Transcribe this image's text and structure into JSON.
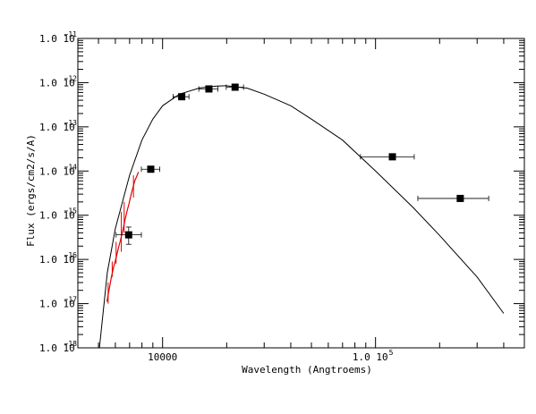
{
  "chart_data": {
    "type": "scatter",
    "xlabel": "Wavelength (Angtroems)",
    "ylabel": "Flux (ergs/cm2/s/A)",
    "x_scale": "log",
    "y_scale": "log",
    "xlim": [
      4000,
      500000
    ],
    "ylim": [
      1e-18,
      1e-11
    ],
    "x_tick_labels": [
      {
        "value": 10000,
        "mantissa": "10000",
        "exponent": ""
      },
      {
        "value": 100000,
        "mantissa": "1.0 10",
        "exponent": "5"
      }
    ],
    "y_tick_labels": [
      {
        "value": 1e-11,
        "mantissa": "1.0 10",
        "exponent": "−11"
      },
      {
        "value": 1e-12,
        "mantissa": "1.0 10",
        "exponent": "−12"
      },
      {
        "value": 1e-13,
        "mantissa": "1.0 10",
        "exponent": "−13"
      },
      {
        "value": 1e-14,
        "mantissa": "1.0 10",
        "exponent": "−14"
      },
      {
        "value": 1e-15,
        "mantissa": "1.0 10",
        "exponent": "−15"
      },
      {
        "value": 1e-16,
        "mantissa": "1.0 10",
        "exponent": "−16"
      },
      {
        "value": 1e-17,
        "mantissa": "1.0 10",
        "exponent": "−17"
      },
      {
        "value": 1e-18,
        "mantissa": "1.0 10",
        "exponent": "−18"
      }
    ],
    "grid": false,
    "photometry": [
      {
        "x": 6930,
        "y": 3.6e-16,
        "xerr_lo": 6050,
        "xerr_hi": 7950,
        "yerr_lo": 2.2e-16,
        "yerr_hi": 5.4e-16
      },
      {
        "x": 8800,
        "y": 1.1e-14,
        "xerr_lo": 7950,
        "xerr_hi": 9700,
        "yerr_lo": 1.1e-14,
        "yerr_hi": 1.1e-14
      },
      {
        "x": 12300,
        "y": 4.8e-13,
        "xerr_lo": 11200,
        "xerr_hi": 13300,
        "yerr_lo": 4.8e-13,
        "yerr_hi": 4.8e-13
      },
      {
        "x": 16500,
        "y": 7.2e-13,
        "xerr_lo": 14800,
        "xerr_hi": 18200,
        "yerr_lo": 7.2e-13,
        "yerr_hi": 7.2e-13
      },
      {
        "x": 21900,
        "y": 7.9e-13,
        "xerr_lo": 19900,
        "xerr_hi": 24000,
        "yerr_lo": 7.9e-13,
        "yerr_hi": 7.9e-13
      },
      {
        "x": 120000,
        "y": 2.1e-14,
        "xerr_lo": 85000,
        "xerr_hi": 152000,
        "yerr_lo": 2.1e-14,
        "yerr_hi": 2.1e-14
      },
      {
        "x": 250000,
        "y": 2.4e-15,
        "xerr_lo": 158000,
        "xerr_hi": 340000,
        "yerr_lo": 2.4e-15,
        "yerr_hi": 2.4e-15
      }
    ],
    "model_curve": [
      [
        5050,
        1e-18
      ],
      [
        5500,
        5e-17
      ],
      [
        6000,
        5e-16
      ],
      [
        7000,
        8e-15
      ],
      [
        8000,
        5e-14
      ],
      [
        9000,
        1.5e-13
      ],
      [
        10000,
        3e-13
      ],
      [
        12000,
        5.5e-13
      ],
      [
        15000,
        7.6e-13
      ],
      [
        18000,
        8.4e-13
      ],
      [
        20000,
        8.5e-13
      ],
      [
        25000,
        7.5e-13
      ],
      [
        30000,
        5.5e-13
      ],
      [
        40000,
        3e-13
      ],
      [
        50000,
        1.5e-13
      ],
      [
        70000,
        5e-14
      ],
      [
        100000,
        1e-14
      ],
      [
        150000,
        1.5e-15
      ],
      [
        200000,
        3.5e-16
      ],
      [
        300000,
        4e-17
      ],
      [
        400000,
        6e-18
      ]
    ],
    "spectrum": [
      [
        5480,
        1.1e-17
      ],
      [
        5600,
        2e-17
      ],
      [
        5750,
        4e-17
      ],
      [
        5900,
        7e-17
      ],
      [
        6050,
        1.1e-16
      ],
      [
        6200,
        1.8e-16
      ],
      [
        6350,
        2.8e-16
      ],
      [
        6500,
        4.5e-16
      ],
      [
        6650,
        7.5e-16
      ],
      [
        6800,
        1.2e-15
      ],
      [
        6950,
        1.8e-15
      ],
      [
        7100,
        2.8e-15
      ],
      [
        7250,
        4.2e-15
      ],
      [
        7400,
        6e-15
      ],
      [
        7550,
        7.5e-15
      ],
      [
        7700,
        9.5e-15
      ]
    ],
    "spectrum_spikes": [
      [
        5550,
        1e-17,
        3e-17
      ],
      [
        5800,
        4e-17,
        9e-17
      ],
      [
        6050,
        8e-17,
        2.5e-16
      ],
      [
        6400,
        1.5e-16,
        1.2e-15
      ],
      [
        6600,
        4e-16,
        2e-15
      ],
      [
        7300,
        2.5e-15,
        8e-15
      ]
    ],
    "colors": {
      "axes": "#000000",
      "points": "#000000",
      "model": "#000000",
      "spectrum": "#e00000"
    }
  }
}
